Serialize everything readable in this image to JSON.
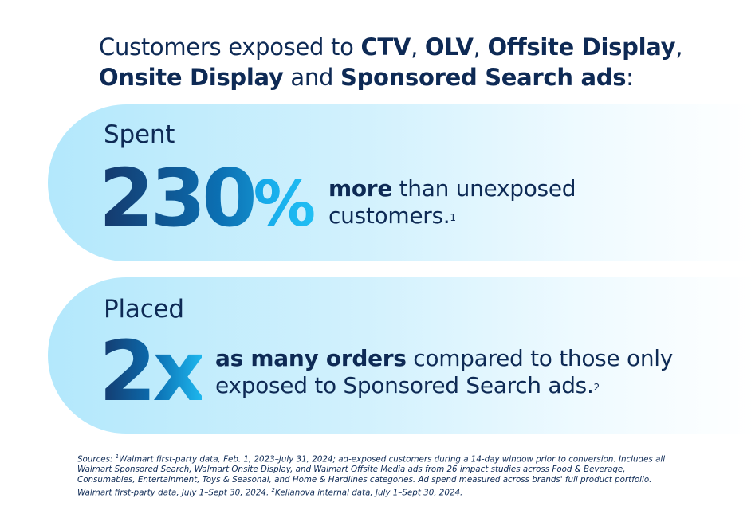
{
  "headline": {
    "part1": "Customers exposed to ",
    "ctv": "CTV",
    "sep1": ", ",
    "olv": "OLV",
    "sep2": ", ",
    "offsite": "Offsite Display",
    "sep3": ",",
    "onsite": "Onsite Display",
    "and": " and ",
    "sponsored": "Sponsored Search ads",
    "colon": ":"
  },
  "stat1": {
    "verb": "Spent",
    "number": "230",
    "unit": "%",
    "bold": "more",
    "text": " than unexposed customers.",
    "footnote": "1"
  },
  "stat2": {
    "verb": "Placed",
    "number": "2x",
    "bold": "as many orders",
    "text": " compared to those only exposed to Sponsored Search ads.",
    "footnote": "2"
  },
  "sources": {
    "prefix": "Sources: ",
    "fn1": "1",
    "text1": "Walmart first-party data, Feb. 1, 2023–July 31, 2024; ad-exposed customers during a 14-day window prior to conversion. Includes all Walmart Sponsored Search, Walmart Onsite Display, and Walmart Offsite Media ads from 26 impact studies across Food & Beverage, Consumables, Entertainment, Toys & Seasonal, and Home & Hardlines categories. Ad spend measured across brands' full product portfolio. Walmart first-party data, July 1–Sept 30, 2024. ",
    "fn2": "2",
    "text2": "Kellanova internal data, July 1–Sept 30, 2024."
  }
}
